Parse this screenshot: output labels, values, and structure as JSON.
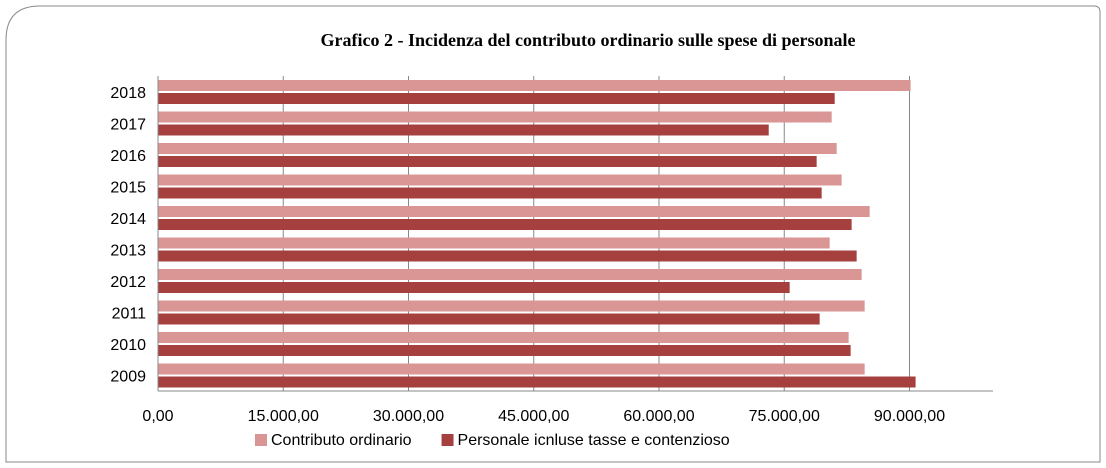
{
  "chart_data": {
    "type": "barh",
    "title": "Grafico 2 - Incidenza del contributo ordinario sulle spese di personale",
    "categories": [
      "2018",
      "2017",
      "2016",
      "2015",
      "2014",
      "2013",
      "2012",
      "2011",
      "2010",
      "2009"
    ],
    "series": [
      {
        "name": "Contributo ordinario",
        "color": "#d99694",
        "values": [
          90130,
          80680,
          81280,
          81870,
          85230,
          80440,
          84270,
          84630,
          82710,
          84630
        ]
      },
      {
        "name": "Personale icnluse tasse e contenzioso",
        "color": "#a5403e",
        "values": [
          81040,
          73140,
          78880,
          79480,
          83070,
          83670,
          75650,
          79240,
          82950,
          90730
        ]
      }
    ],
    "xlim": [
      0,
      100000
    ],
    "xticks": [
      {
        "value": 0,
        "label": "0,00"
      },
      {
        "value": 15000,
        "label": "15.000,00"
      },
      {
        "value": 30000,
        "label": "30.000,00"
      },
      {
        "value": 45000,
        "label": "45.000,00"
      },
      {
        "value": 60000,
        "label": "60.000,00"
      },
      {
        "value": 75000,
        "label": "75.000,00"
      },
      {
        "value": 90000,
        "label": "90.000,00"
      }
    ],
    "grid": true,
    "legend": "bottom"
  }
}
